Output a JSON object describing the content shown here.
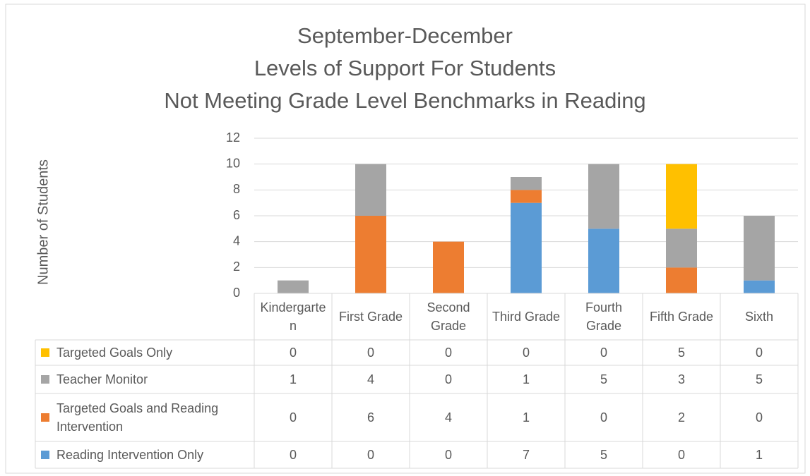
{
  "chart_data": {
    "type": "stacked_bar",
    "title": "September-December\nLevels of Support For Students\nNot Meeting Grade Level Benchmarks in Reading",
    "y_label": "Number of Students",
    "categories": [
      "Kindergarten",
      "First Grade",
      "Second Grade",
      "Third Grade",
      "Fourth Grade",
      "Fifth Grade",
      "Sixth"
    ],
    "series": [
      {
        "name": "Reading Intervention Only",
        "color": "#5b9bd5",
        "values": [
          0,
          0,
          0,
          7,
          5,
          0,
          1
        ]
      },
      {
        "name": "Targeted Goals and Reading Intervention",
        "color": "#ed7d31",
        "values": [
          0,
          6,
          4,
          1,
          0,
          2,
          0
        ]
      },
      {
        "name": "Teacher Monitor",
        "color": "#a5a5a5",
        "values": [
          1,
          4,
          0,
          1,
          5,
          3,
          5
        ]
      },
      {
        "name": "Targeted Goals Only",
        "color": "#ffc000",
        "values": [
          0,
          0,
          0,
          0,
          0,
          5,
          0
        ]
      }
    ],
    "ylim": [
      0,
      12
    ],
    "yticks": [
      0,
      2,
      4,
      6,
      8,
      10,
      12
    ],
    "grid": true,
    "data_table": true
  }
}
